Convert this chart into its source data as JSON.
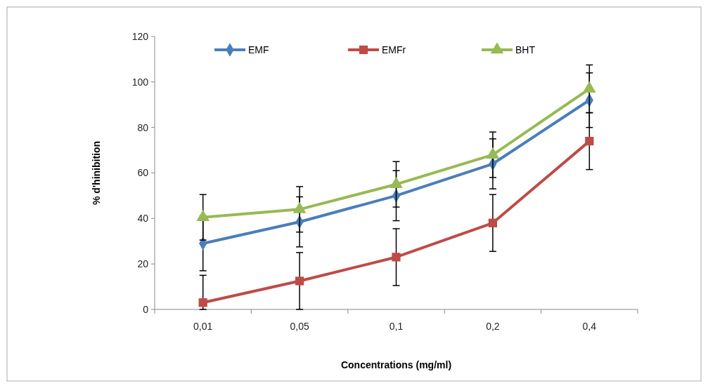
{
  "chart_data": {
    "type": "line",
    "xlabel": "Concentrations (mg/ml)",
    "ylabel": "% d'hinibition",
    "categories": [
      "0,01",
      "0,05",
      "0,1",
      "0,2",
      "0,4"
    ],
    "ylim": [
      0,
      120
    ],
    "yticks": [
      0,
      20,
      40,
      60,
      80,
      100,
      120
    ],
    "legend": "top",
    "line_style": "solid",
    "series": [
      {
        "name": "EMF",
        "color": "#4a7ebb",
        "marker": "diamond",
        "values": [
          29,
          38.5,
          50,
          64,
          92
        ],
        "errors": [
          12,
          11,
          11,
          11,
          12
        ]
      },
      {
        "name": "EMFr",
        "color": "#be4b48",
        "marker": "square",
        "values": [
          3,
          12.5,
          23,
          38,
          74
        ],
        "errors": [
          [
            0,
            15
          ],
          12.5,
          12.5,
          12.5,
          12.5
        ]
      },
      {
        "name": "BHT",
        "color": "#98b954",
        "marker": "triangle",
        "values": [
          40.5,
          44,
          55,
          68,
          97
        ],
        "errors": [
          10,
          10,
          10,
          10,
          10.5
        ]
      }
    ]
  }
}
